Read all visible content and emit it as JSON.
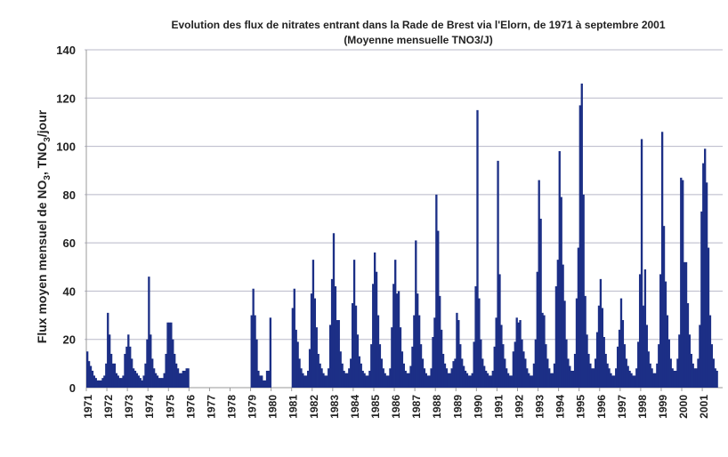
{
  "chart_data": {
    "type": "bar",
    "title": "Evolution des flux de nitrates entrant dans la Rade de Brest via l'Elorn, de 1971 à septembre 2001",
    "subtitle": "(Moyenne mensuelle TNO3/J)",
    "ylabel_parts": [
      "Flux moyen mensuel de NO",
      "3",
      ", TNO",
      "3",
      "/jour"
    ],
    "xlabel": "",
    "ylim": [
      0,
      140
    ],
    "yticks": [
      0,
      20,
      40,
      60,
      80,
      100,
      120,
      140
    ],
    "grid": true,
    "bar_color": "#1c2f86",
    "years": [
      "1971",
      "1972",
      "1973",
      "1974",
      "1975",
      "1976",
      "1977",
      "1978",
      "1979",
      "1980",
      "1981",
      "1982",
      "1983",
      "1984",
      "1985",
      "1986",
      "1987",
      "1988",
      "1989",
      "1990",
      "1991",
      "1992",
      "1993",
      "1994",
      "1995",
      "1996",
      "1997",
      "1998",
      "1999",
      "2000",
      "2001"
    ],
    "monthly_values": {
      "1971": [
        15,
        11,
        9,
        7,
        5,
        4,
        3,
        3,
        3,
        4,
        5,
        10
      ],
      "1972": [
        31,
        22,
        14,
        10,
        10,
        6,
        5,
        4,
        4,
        5,
        14,
        17
      ],
      "1973": [
        22,
        17,
        12,
        8,
        7,
        6,
        5,
        4,
        3,
        5,
        10,
        20
      ],
      "1974": [
        46,
        22,
        12,
        8,
        6,
        5,
        4,
        4,
        4,
        6,
        14,
        27
      ],
      "1975": [
        27,
        27,
        20,
        14,
        10,
        8,
        6,
        6,
        7,
        7,
        8,
        8
      ],
      "1976": [
        null,
        null,
        null,
        null,
        null,
        null,
        null,
        null,
        null,
        null,
        null,
        null
      ],
      "1977": [
        null,
        null,
        null,
        null,
        null,
        null,
        null,
        null,
        null,
        null,
        null,
        null
      ],
      "1978": [
        null,
        null,
        null,
        null,
        null,
        null,
        null,
        null,
        null,
        null,
        null,
        null
      ],
      "1979": [
        30,
        41,
        30,
        20,
        7,
        5,
        5,
        3,
        3,
        7,
        7,
        29
      ],
      "1980": [
        null,
        null,
        null,
        null,
        null,
        null,
        null,
        null,
        null,
        null,
        null,
        null
      ],
      "1981": [
        33,
        41,
        24,
        19,
        12,
        8,
        6,
        5,
        5,
        7,
        16,
        39
      ],
      "1982": [
        53,
        37,
        25,
        14,
        10,
        8,
        6,
        5,
        5,
        8,
        26,
        45
      ],
      "1983": [
        64,
        42,
        28,
        28,
        15,
        10,
        7,
        6,
        6,
        8,
        12,
        35
      ],
      "1984": [
        53,
        34,
        22,
        13,
        10,
        7,
        6,
        5,
        5,
        7,
        18,
        43
      ],
      "1985": [
        56,
        48,
        30,
        18,
        12,
        8,
        6,
        5,
        5,
        8,
        25,
        43
      ],
      "1986": [
        53,
        39,
        40,
        25,
        15,
        10,
        7,
        6,
        6,
        9,
        17,
        30
      ],
      "1987": [
        61,
        39,
        30,
        18,
        12,
        8,
        6,
        5,
        5,
        8,
        21,
        29
      ],
      "1988": [
        80,
        65,
        38,
        24,
        14,
        10,
        8,
        6,
        6,
        8,
        11,
        12
      ],
      "1989": [
        31,
        28,
        18,
        12,
        9,
        7,
        6,
        5,
        5,
        6,
        19,
        42
      ],
      "1990": [
        115,
        37,
        20,
        12,
        9,
        7,
        6,
        5,
        5,
        7,
        17,
        29
      ],
      "1991": [
        94,
        47,
        26,
        18,
        12,
        8,
        6,
        5,
        5,
        15,
        19,
        29
      ],
      "1992": [
        27,
        28,
        20,
        15,
        12,
        8,
        6,
        5,
        5,
        10,
        20,
        48
      ],
      "1993": [
        86,
        70,
        31,
        30,
        18,
        12,
        8,
        6,
        6,
        10,
        42,
        53
      ],
      "1994": [
        98,
        79,
        51,
        36,
        20,
        12,
        9,
        7,
        7,
        14,
        37,
        58
      ],
      "1995": [
        117,
        126,
        80,
        38,
        22,
        14,
        10,
        8,
        8,
        12,
        23,
        34
      ],
      "1996": [
        45,
        33,
        21,
        14,
        10,
        8,
        6,
        5,
        5,
        8,
        17,
        24
      ],
      "1997": [
        37,
        28,
        18,
        12,
        9,
        7,
        6,
        5,
        5,
        8,
        19,
        47
      ],
      "1998": [
        103,
        34,
        49,
        26,
        15,
        10,
        8,
        6,
        6,
        10,
        18,
        47
      ],
      "1999": [
        106,
        67,
        44,
        30,
        20,
        12,
        8,
        7,
        7,
        12,
        22,
        87
      ],
      "2000": [
        86,
        52,
        52,
        35,
        22,
        14,
        10,
        8,
        8,
        12,
        26,
        73
      ],
      "2001": [
        93,
        99,
        85,
        58,
        30,
        18,
        12,
        8,
        7
      ]
    }
  }
}
